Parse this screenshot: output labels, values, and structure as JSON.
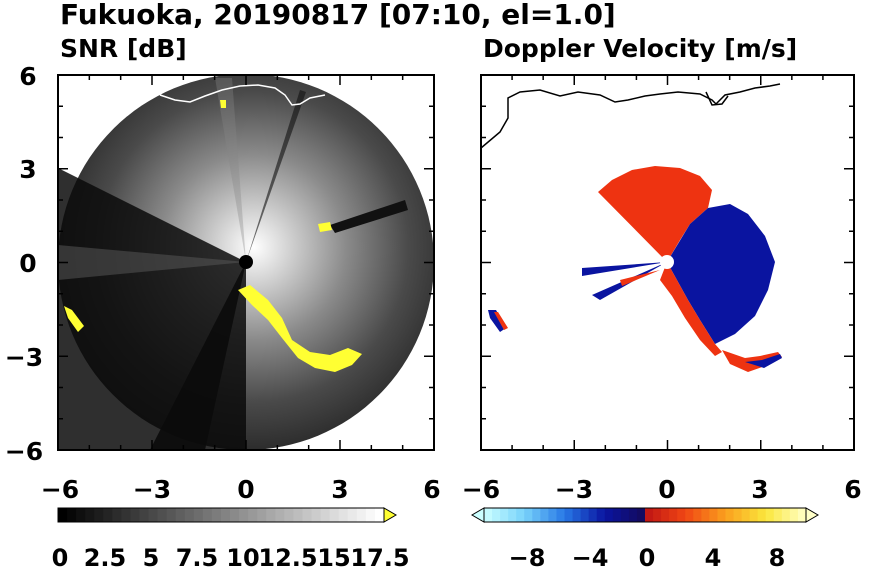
{
  "figure": {
    "title": "Fukuoka, 20190817 [07:10, el=1.0]"
  },
  "colors": {
    "snr_highlight": "#ffff33",
    "vel_positive": "#ee3311",
    "vel_negative": "#0a14a0",
    "coastline": "#000000"
  },
  "chart_data": [
    {
      "type": "heatmap",
      "title": "SNR [dB]",
      "xlim": [
        -6,
        6
      ],
      "ylim": [
        -6,
        6
      ],
      "xticks": [
        "−6",
        "−3",
        "0",
        "3",
        "6"
      ],
      "yticks": [
        "6",
        "3",
        "0",
        "−3",
        "−6"
      ],
      "radar_range": 6,
      "colorbar": {
        "min": 0,
        "max": 18,
        "step": 0.5,
        "extend": "max",
        "labels": [
          "0",
          "2.5",
          "5",
          "7.5",
          "10",
          "12.5",
          "15",
          "17.5"
        ]
      }
    },
    {
      "type": "heatmap",
      "title": "Doppler Velocity [m/s]",
      "xlim": [
        -6,
        6
      ],
      "ylim": [
        -6,
        6
      ],
      "xticks": [
        "−6",
        "−3",
        "0",
        "3",
        "6"
      ],
      "yticks": [
        "6",
        "3",
        "0",
        "−3",
        "−6"
      ],
      "colorbar": {
        "min": -10,
        "max": 10,
        "step": 0.5,
        "extend": "both",
        "labels": [
          "−8",
          "−4",
          "0",
          "4",
          "8"
        ]
      }
    }
  ]
}
